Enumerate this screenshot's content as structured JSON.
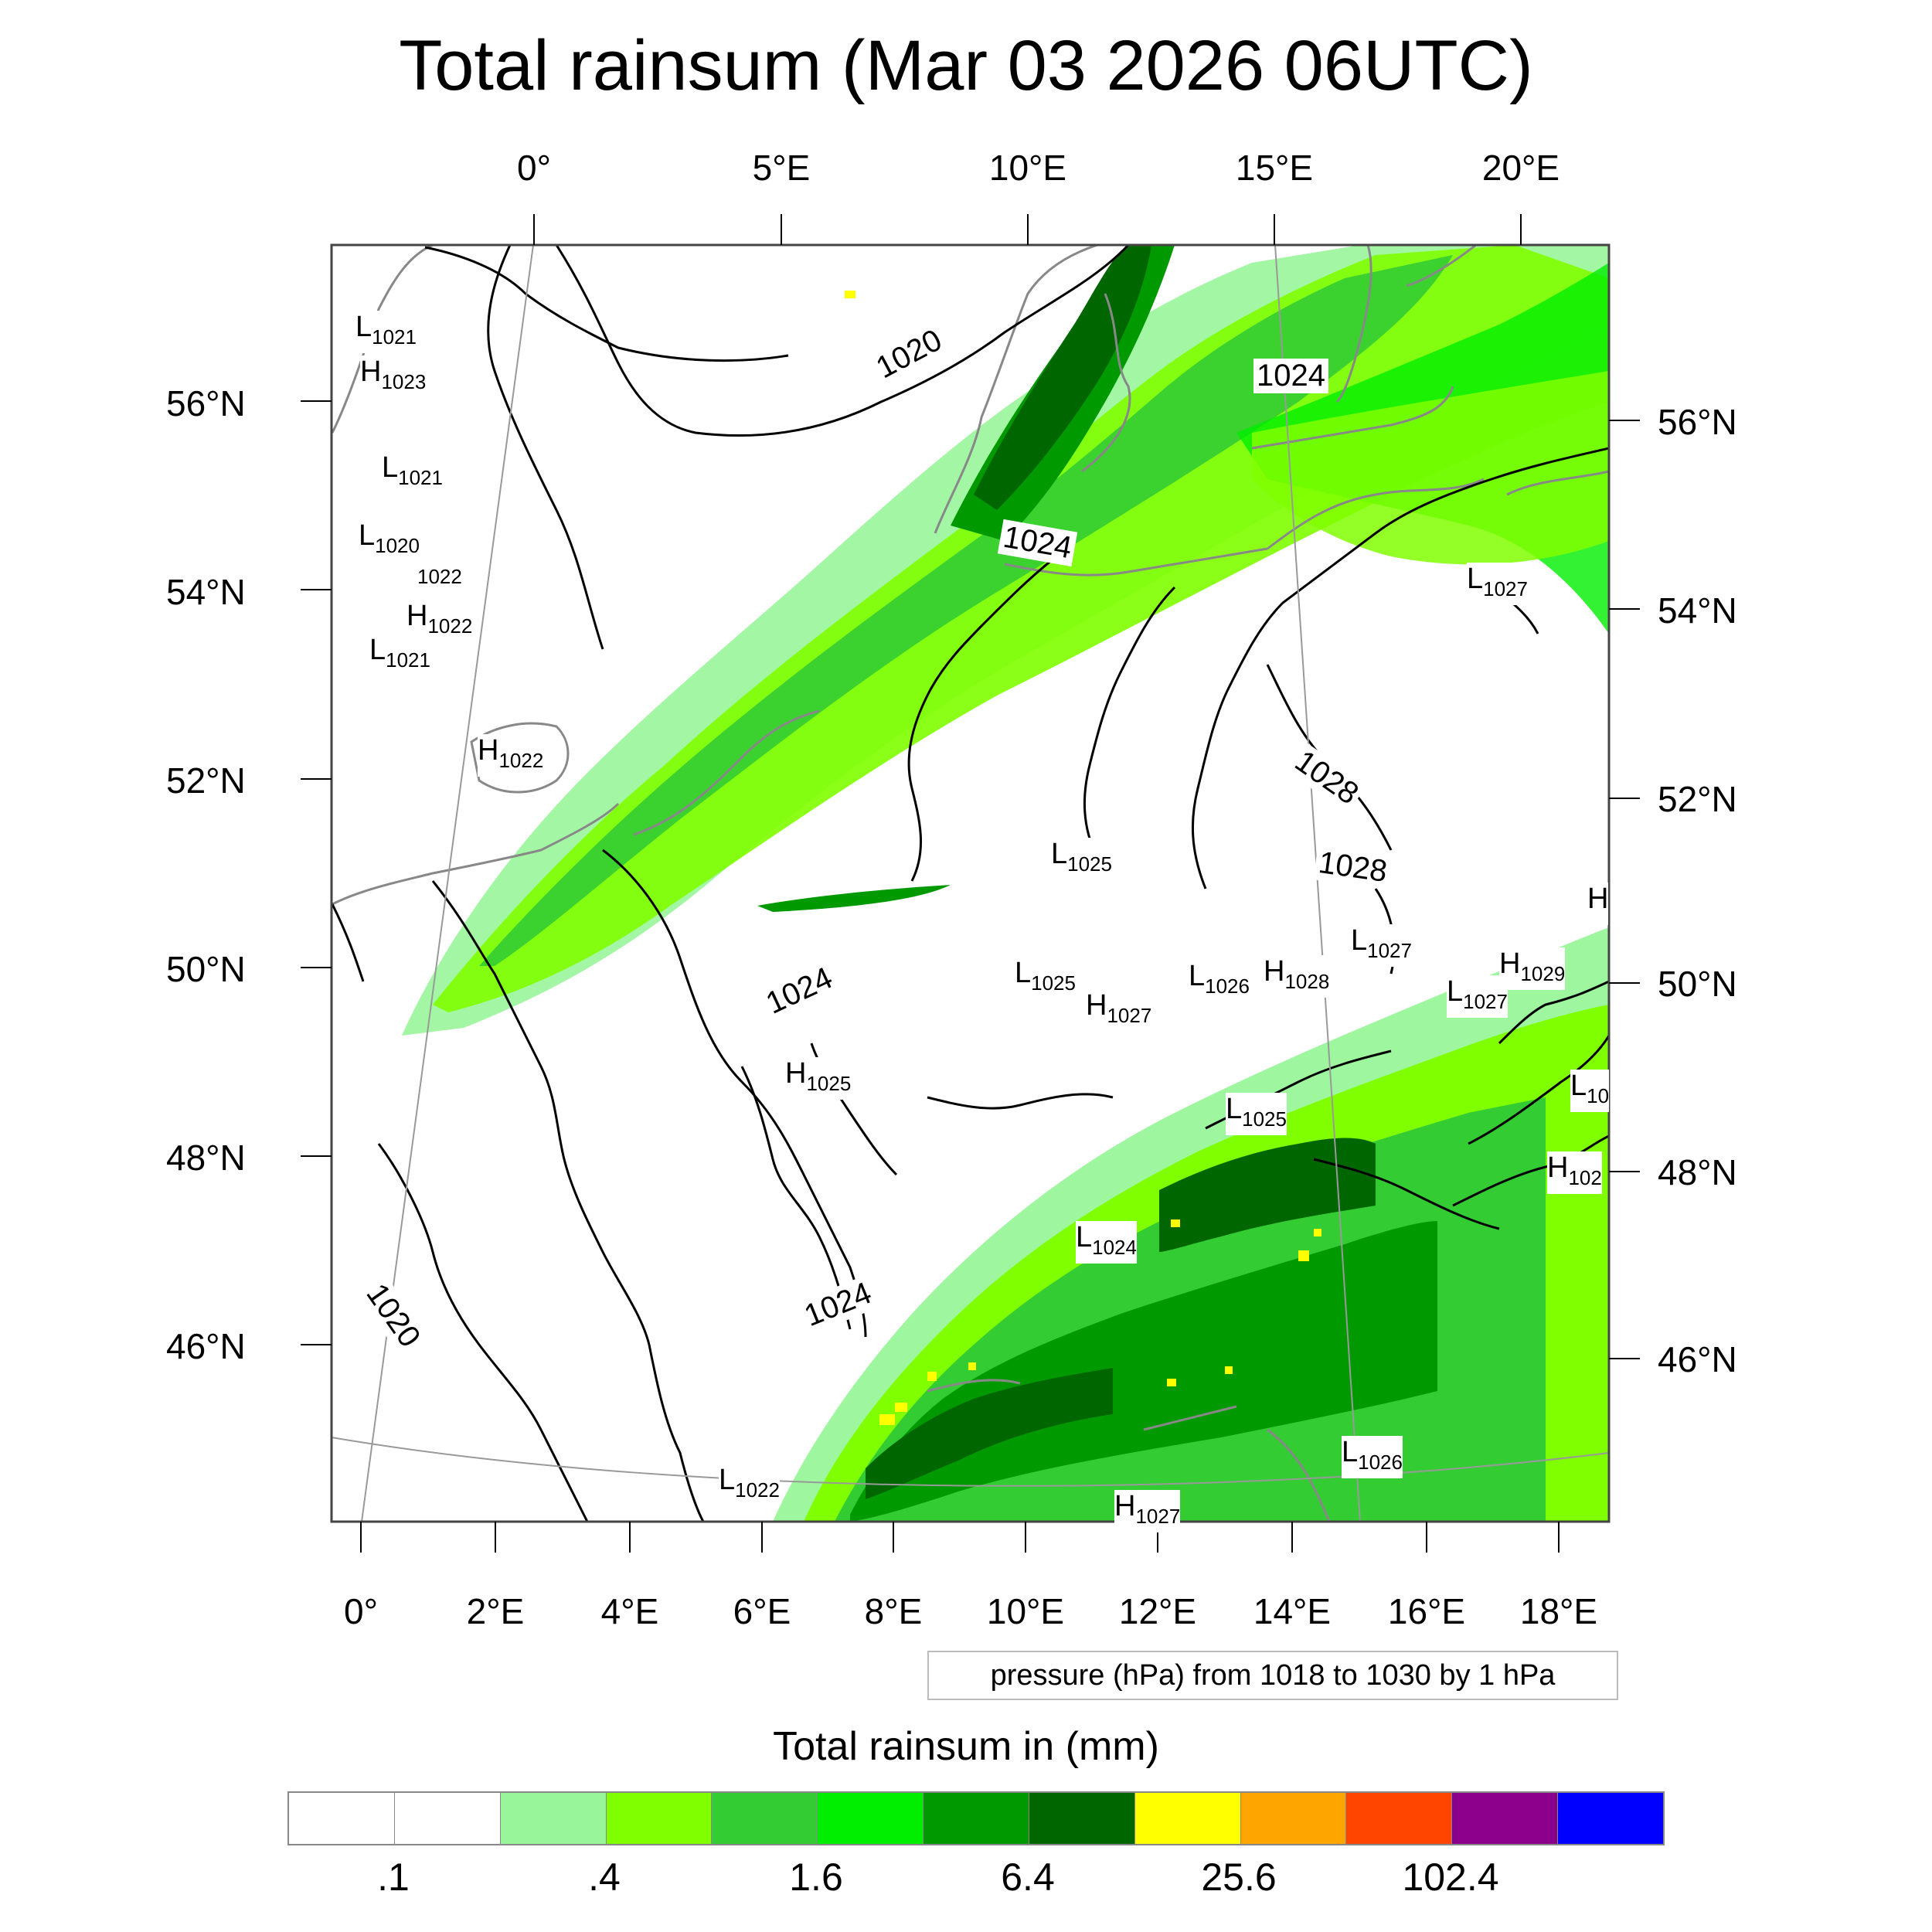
{
  "title": "Total rainsum (Mar 03 2026 06UTC)",
  "top_lon_labels": [
    "0°",
    "5°E",
    "10°E",
    "15°E",
    "20°E"
  ],
  "bottom_lon_labels": [
    "0°",
    "2°E",
    "4°E",
    "6°E",
    "8°E",
    "10°E",
    "12°E",
    "14°E",
    "16°E",
    "18°E"
  ],
  "left_lat_labels": [
    "56°N",
    "54°N",
    "52°N",
    "50°N",
    "48°N",
    "46°N"
  ],
  "right_lat_labels": [
    "56°N",
    "54°N",
    "52°N",
    "50°N",
    "48°N",
    "46°N"
  ],
  "pressure_labels": [
    {
      "type": "L",
      "value": "1021"
    },
    {
      "type": "H",
      "value": "1023"
    },
    {
      "type": "L",
      "value": "1021"
    },
    {
      "type": "L",
      "value": "1020"
    },
    {
      "type": "",
      "value": "1022"
    },
    {
      "type": "H",
      "value": "1022"
    },
    {
      "type": "L",
      "value": "1021"
    },
    {
      "type": "H",
      "value": "1022"
    },
    {
      "type": "L",
      "value": "1027"
    },
    {
      "type": "L",
      "value": "1025"
    },
    {
      "type": "L",
      "value": "1025"
    },
    {
      "type": "H",
      "value": "1027"
    },
    {
      "type": "L",
      "value": "1026"
    },
    {
      "type": "H",
      "value": "1028"
    },
    {
      "type": "L",
      "value": "1027"
    },
    {
      "type": "H",
      "value": "1029"
    },
    {
      "type": "L",
      "value": "1027"
    },
    {
      "type": "H",
      "value": "1025"
    },
    {
      "type": "L",
      "value": "1025"
    },
    {
      "type": "L",
      "value": "1024"
    },
    {
      "type": "L",
      "value": "1022"
    },
    {
      "type": "H",
      "value": "1027"
    },
    {
      "type": "L",
      "value": "1026"
    },
    {
      "type": "H",
      "value": "102"
    },
    {
      "type": "L",
      "value": "10"
    },
    {
      "type": "H",
      "value": ""
    }
  ],
  "isobar_labels": [
    "1020",
    "1024",
    "1024",
    "1028",
    "1028",
    "1024",
    "1024",
    "1020"
  ],
  "contour_info": "pressure (hPa) from 1018 to 1030 by 1 hPa",
  "legend": {
    "title": "Total rainsum in (mm)",
    "colors": [
      "#ffffff",
      "#ffffff",
      "#99f599",
      "#80ff00",
      "#33cc33",
      "#00ee00",
      "#009900",
      "#006600",
      "#ffff00",
      "#ffa500",
      "#ff4500",
      "#8b008b",
      "#0000ff"
    ],
    "labels": [
      ".1",
      ".4",
      "1.6",
      "6.4",
      "25.6",
      "102.4"
    ]
  }
}
